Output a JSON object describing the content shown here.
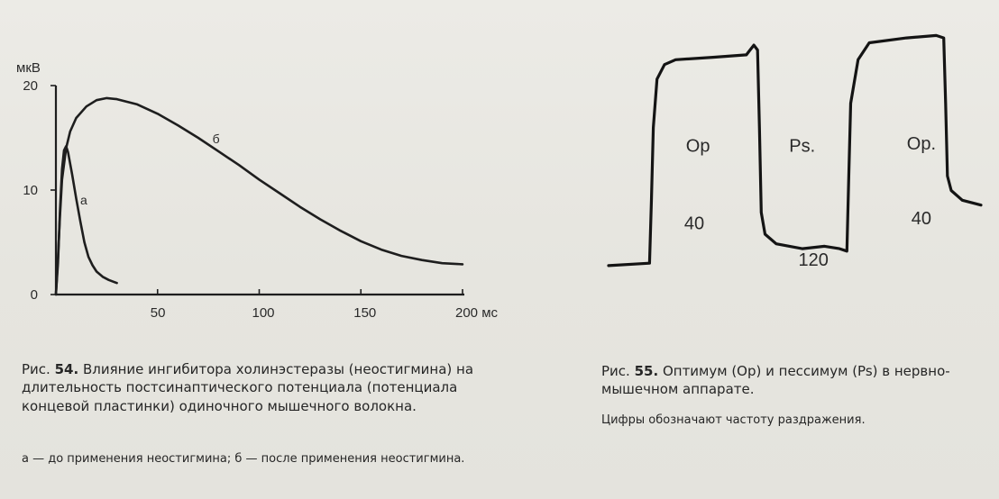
{
  "chart_data": [
    {
      "type": "line",
      "title": "",
      "ylabel": "мкВ",
      "xlabel": "мс",
      "xlim": [
        0,
        200
      ],
      "ylim": [
        0,
        20
      ],
      "x_ticks": [
        {
          "value": 50,
          "label": "50"
        },
        {
          "value": 100,
          "label": "100"
        },
        {
          "value": 150,
          "label": "150"
        },
        {
          "value": 200,
          "label": "200 мс"
        }
      ],
      "y_ticks": [
        {
          "value": 0,
          "label": "0"
        },
        {
          "value": 10,
          "label": "10"
        },
        {
          "value": 20,
          "label": "20"
        }
      ],
      "y_unit": "мкВ",
      "series": [
        {
          "name": "а",
          "label_at": [
            12,
            8.6
          ],
          "points": [
            [
              0,
              0
            ],
            [
              1,
              3
            ],
            [
              2,
              8
            ],
            [
              3,
              12
            ],
            [
              4,
              13.8
            ],
            [
              5,
              14.2
            ],
            [
              6,
              13.6
            ],
            [
              8,
              11.5
            ],
            [
              10,
              9.2
            ],
            [
              12,
              7
            ],
            [
              14,
              5
            ],
            [
              16,
              3.6
            ],
            [
              18,
              2.8
            ],
            [
              20,
              2.2
            ],
            [
              23,
              1.7
            ],
            [
              26,
              1.4
            ],
            [
              30,
              1.1
            ]
          ]
        },
        {
          "name": "б",
          "label_at": [
            77,
            14.5
          ],
          "points": [
            [
              0,
              0
            ],
            [
              1,
              3.5
            ],
            [
              2,
              7.5
            ],
            [
              3,
              11
            ],
            [
              5,
              14
            ],
            [
              7,
              15.6
            ],
            [
              10,
              16.9
            ],
            [
              15,
              18
            ],
            [
              20,
              18.6
            ],
            [
              25,
              18.8
            ],
            [
              30,
              18.7
            ],
            [
              40,
              18.2
            ],
            [
              50,
              17.3
            ],
            [
              60,
              16.2
            ],
            [
              70,
              15
            ],
            [
              80,
              13.7
            ],
            [
              90,
              12.4
            ],
            [
              100,
              11
            ],
            [
              110,
              9.7
            ],
            [
              120,
              8.4
            ],
            [
              130,
              7.2
            ],
            [
              140,
              6.1
            ],
            [
              150,
              5.1
            ],
            [
              160,
              4.3
            ],
            [
              170,
              3.7
            ],
            [
              180,
              3.3
            ],
            [
              190,
              3
            ],
            [
              200,
              2.9
            ]
          ]
        }
      ]
    },
    {
      "type": "line",
      "title": "",
      "xlabel": "",
      "ylabel": "",
      "xlim": [
        0,
        100
      ],
      "ylim": [
        0,
        100
      ],
      "series": [
        {
          "name": "",
          "points": [
            [
              0,
              3
            ],
            [
              11,
              4
            ],
            [
              11.5,
              30
            ],
            [
              12,
              60
            ],
            [
              13,
              80
            ],
            [
              15,
              86
            ],
            [
              18,
              88
            ],
            [
              28,
              89
            ],
            [
              37,
              90
            ],
            [
              38,
              92
            ],
            [
              39,
              94
            ],
            [
              40,
              92
            ],
            [
              40.5,
              60
            ],
            [
              41,
              25
            ],
            [
              42,
              16
            ],
            [
              45,
              12
            ],
            [
              52,
              10
            ],
            [
              58,
              11
            ],
            [
              62,
              10
            ],
            [
              64,
              9
            ],
            [
              64.5,
              40
            ],
            [
              65,
              70
            ],
            [
              67,
              88
            ],
            [
              70,
              95
            ],
            [
              80,
              97
            ],
            [
              88,
              98
            ],
            [
              90,
              97
            ],
            [
              90.5,
              70
            ],
            [
              91,
              40
            ],
            [
              92,
              34
            ],
            [
              95,
              30
            ],
            [
              100,
              28
            ]
          ]
        }
      ],
      "annotations": [
        {
          "text": "Ор",
          "at": [
            24,
            50
          ]
        },
        {
          "text": "40",
          "at": [
            23,
            18
          ]
        },
        {
          "text": "Ps.",
          "at": [
            52,
            50
          ]
        },
        {
          "text": "120",
          "at": [
            55,
            3
          ]
        },
        {
          "text": "Ор.",
          "at": [
            84,
            51
          ]
        },
        {
          "text": "40",
          "at": [
            84,
            20
          ]
        }
      ]
    }
  ],
  "captions": {
    "fig54": {
      "lead": "Рис.",
      "number": "54.",
      "text": "Влияние ингибитора холинэстеразы (неостигмина) на длительность постсинаптического потенциала (потенциала концевой пластинки) одиночного мышечного волокна.",
      "note": "а — до применения неостигмина; б — после применения неостигмина."
    },
    "fig55": {
      "lead": "Рис.",
      "number": "55.",
      "text": "Оптимум (Ор) и пессимум (Ps) в нервно-мышечном аппарате.",
      "note": "Цифры обозначают частоту раздражения."
    }
  }
}
